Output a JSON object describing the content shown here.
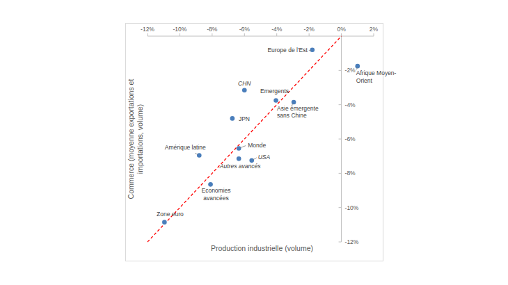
{
  "chart_data": {
    "type": "scatter",
    "x_label": "Production industrielle (volume)",
    "y_label": "Commerce (moyenne exportations et importations, volume)",
    "xlim": [
      -12,
      2
    ],
    "ylim": [
      -12,
      0
    ],
    "xticks": [
      {
        "value": -12,
        "label": "-12%"
      },
      {
        "value": -10,
        "label": "-10%"
      },
      {
        "value": -8,
        "label": "-8%"
      },
      {
        "value": -6,
        "label": "-6%"
      },
      {
        "value": -4,
        "label": "-4%"
      },
      {
        "value": -2,
        "label": "-2%"
      },
      {
        "value": 0,
        "label": "0%"
      },
      {
        "value": 2,
        "label": "2%"
      }
    ],
    "yticks": [
      {
        "value": -2,
        "label": "-2%"
      },
      {
        "value": -4,
        "label": "-4%"
      },
      {
        "value": -6,
        "label": "-6%"
      },
      {
        "value": -8,
        "label": "-8%"
      },
      {
        "value": -10,
        "label": "-10%"
      },
      {
        "value": -12,
        "label": "-12%"
      }
    ],
    "grid": false,
    "series": [
      {
        "type": "scatter",
        "color": "#4a7ebb",
        "marker": "circle",
        "labels": [
          "Europe de l'Est",
          "Afrique Moyen-Orient",
          "CHN",
          "Emergents",
          "Asie émergente sans Chine",
          "JPN",
          "Monde",
          "Amérique latine",
          "Autres avancés",
          "USA",
          "Economies avancées",
          "Zone euro"
        ],
        "x": [
          -1.8,
          1.0,
          -6.0,
          -4.05,
          -2.95,
          -6.75,
          -6.35,
          -8.8,
          -6.35,
          -5.55,
          -8.1,
          -10.95
        ],
        "values": [
          -0.8,
          -1.75,
          -3.15,
          -3.75,
          -3.85,
          -4.8,
          -6.55,
          -6.95,
          -7.15,
          -7.25,
          -8.65,
          -10.85
        ]
      },
      {
        "type": "line",
        "color": "#ff0000",
        "line_style": "dashed",
        "x": [
          -12,
          0
        ],
        "values": [
          -12,
          0
        ]
      }
    ]
  }
}
